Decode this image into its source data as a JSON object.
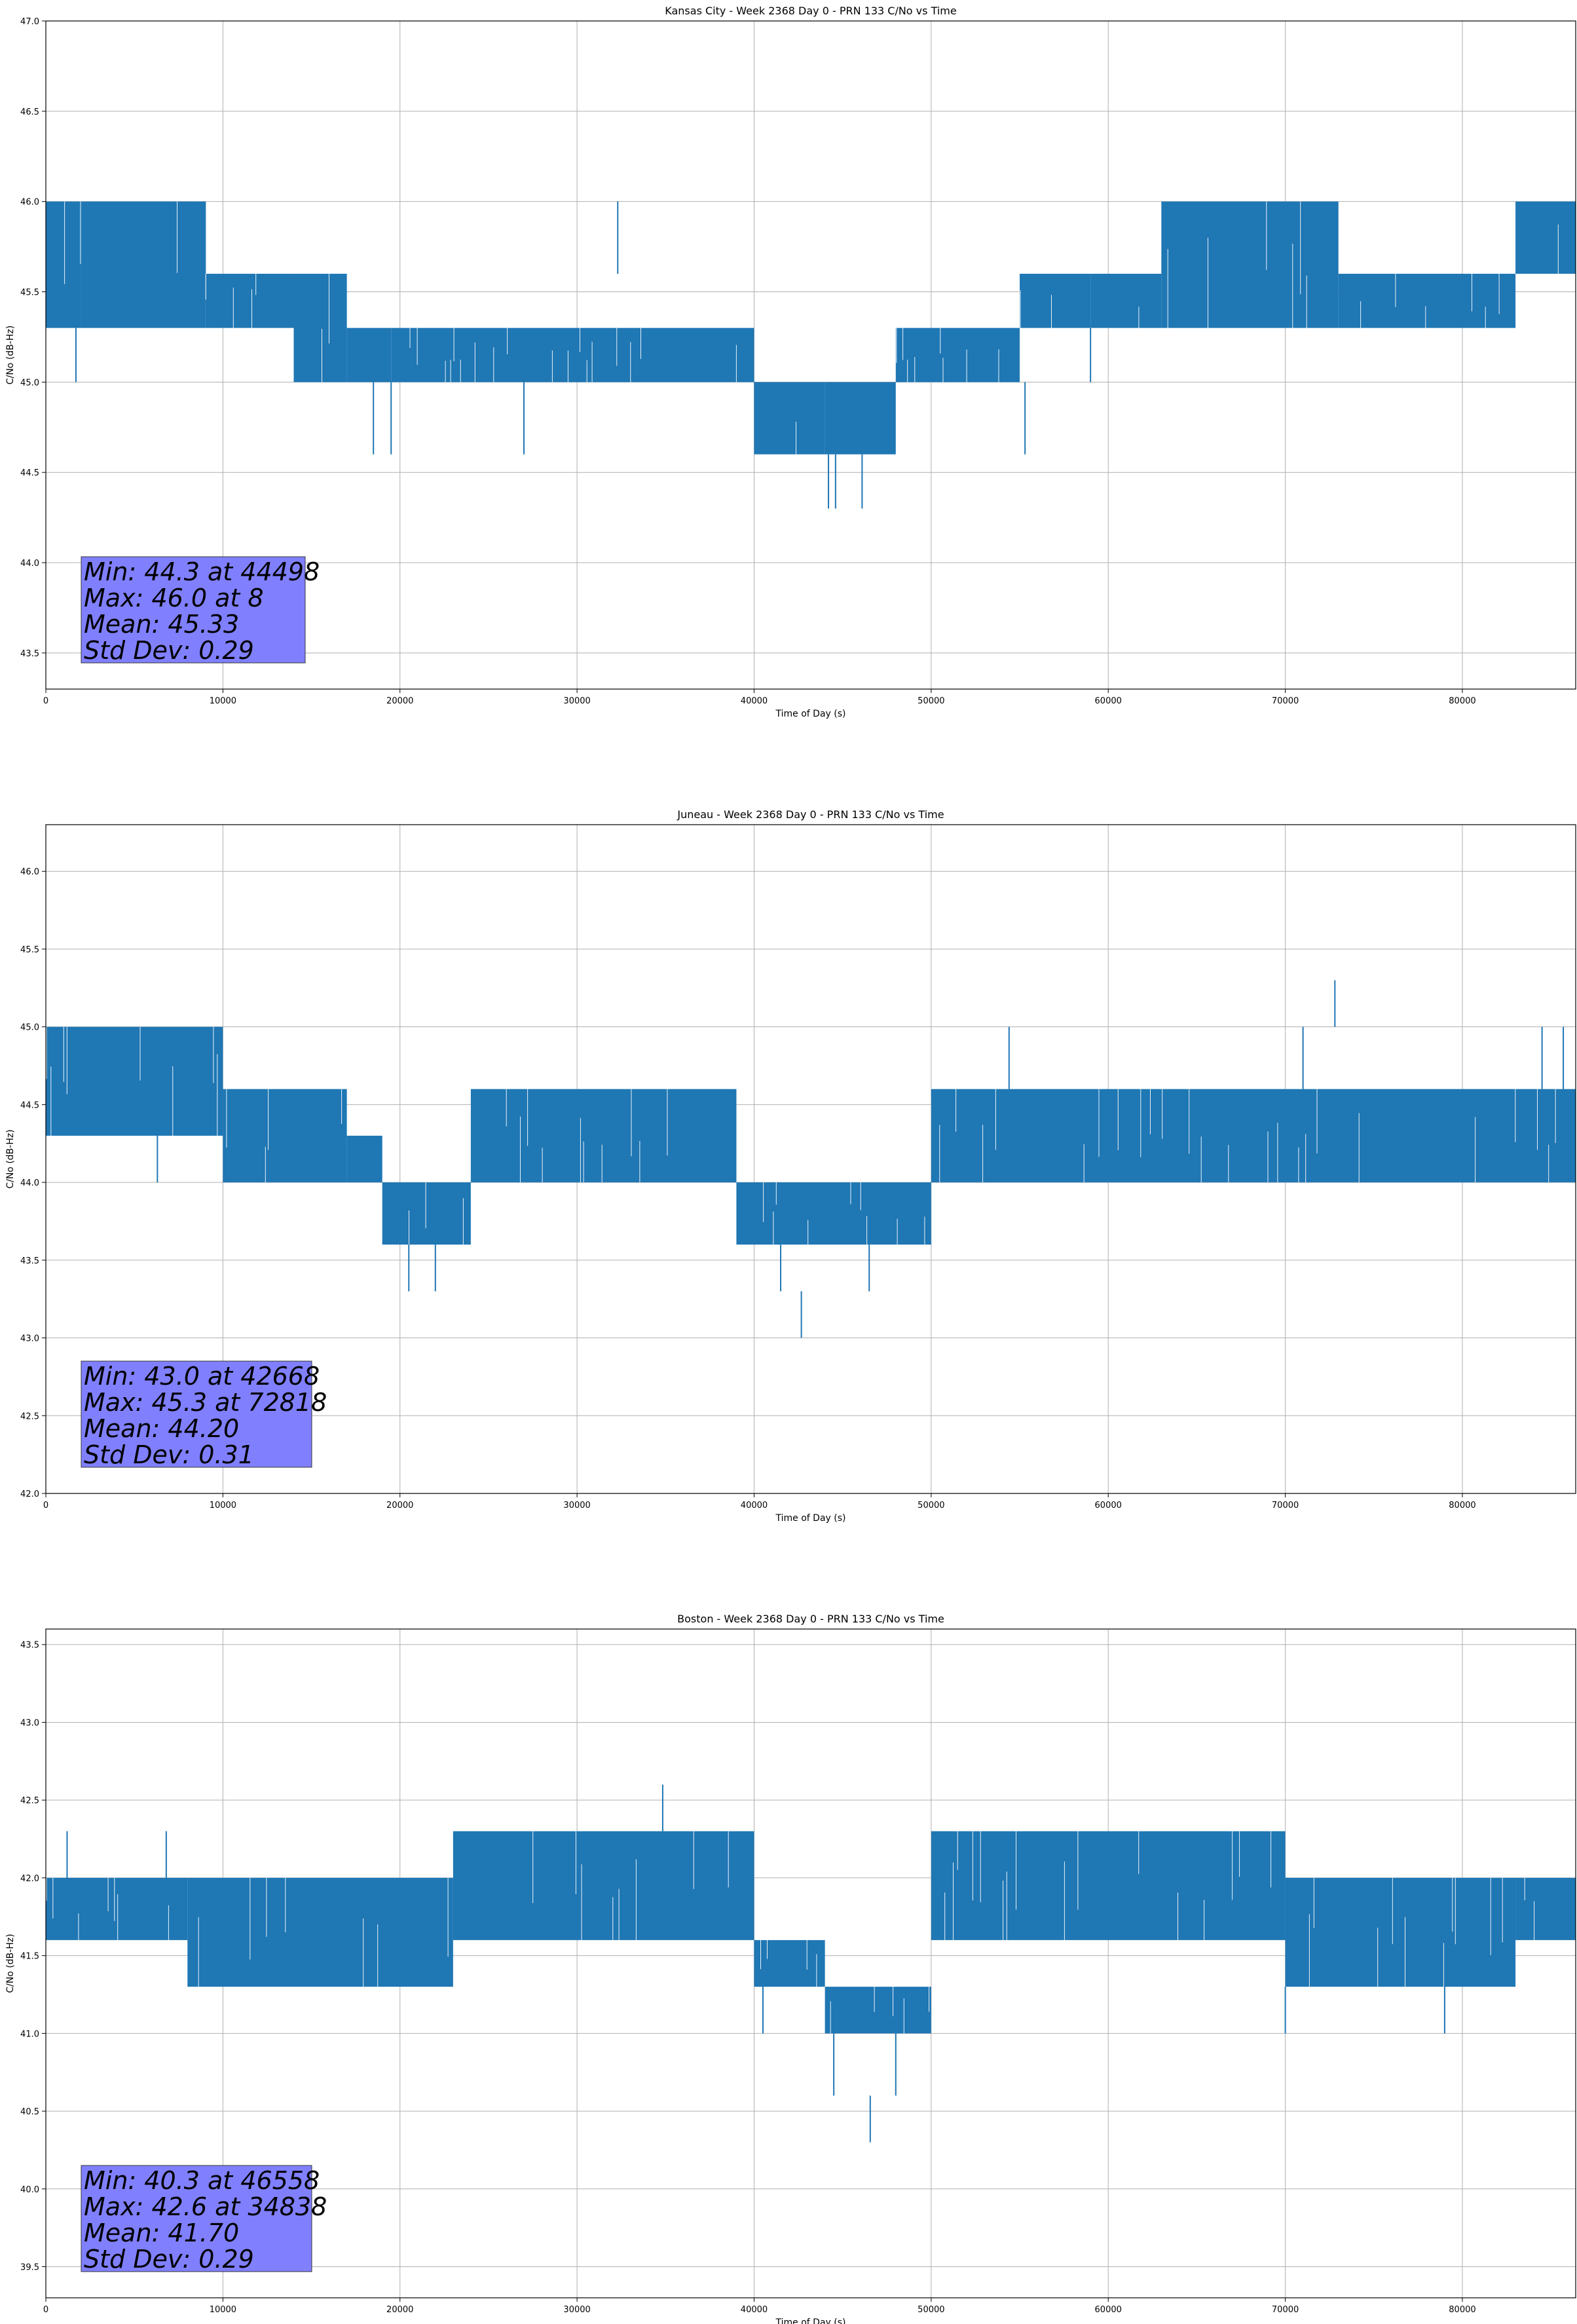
{
  "chart_data": [
    {
      "type": "line",
      "title": "Kansas City - Week 2368 Day 0 - PRN 133 C/No vs Time",
      "xlabel": "Time of Day (s)",
      "ylabel": "C/No (dB-Hz)",
      "xlim": [
        0,
        86400
      ],
      "ylim": [
        43.3,
        47.0
      ],
      "xticks": [
        0,
        10000,
        20000,
        30000,
        40000,
        50000,
        60000,
        70000,
        80000
      ],
      "yticks": [
        43.5,
        44.0,
        44.5,
        45.0,
        45.5,
        46.0,
        46.5,
        47.0
      ],
      "grid": true,
      "series_color": "#1f77b4",
      "series": [
        {
          "name": "C/No",
          "segments": [
            {
              "x0": 0,
              "x1": 2000,
              "low": 45.3,
              "high": 46.0
            },
            {
              "x0": 2000,
              "x1": 9000,
              "low": 45.3,
              "high": 46.0
            },
            {
              "x0": 9000,
              "x1": 14000,
              "low": 45.3,
              "high": 45.6
            },
            {
              "x0": 14000,
              "x1": 17000,
              "low": 45.0,
              "high": 45.6
            },
            {
              "x0": 17000,
              "x1": 19500,
              "low": 45.0,
              "high": 45.3
            },
            {
              "x0": 19500,
              "x1": 40000,
              "low": 45.0,
              "high": 45.3
            },
            {
              "x0": 40000,
              "x1": 44000,
              "low": 44.6,
              "high": 45.0
            },
            {
              "x0": 44000,
              "x1": 48000,
              "low": 44.6,
              "high": 45.0
            },
            {
              "x0": 48000,
              "x1": 55000,
              "low": 45.0,
              "high": 45.3
            },
            {
              "x0": 55000,
              "x1": 59000,
              "low": 45.3,
              "high": 45.6
            },
            {
              "x0": 59000,
              "x1": 63000,
              "low": 45.3,
              "high": 45.6
            },
            {
              "x0": 63000,
              "x1": 73000,
              "low": 45.3,
              "high": 46.0
            },
            {
              "x0": 73000,
              "x1": 83000,
              "low": 45.3,
              "high": 45.6
            },
            {
              "x0": 83000,
              "x1": 86400,
              "low": 45.6,
              "high": 46.0
            }
          ],
          "spikes": [
            {
              "x": 1700,
              "low": 45.0,
              "high": 45.3
            },
            {
              "x": 8000,
              "low": 45.6,
              "high": 46.0
            },
            {
              "x": 9000,
              "low": 45.6,
              "high": 46.0
            },
            {
              "x": 18500,
              "low": 44.6,
              "high": 45.0
            },
            {
              "x": 19500,
              "low": 44.6,
              "high": 45.0
            },
            {
              "x": 27000,
              "low": 44.6,
              "high": 45.0
            },
            {
              "x": 32300,
              "low": 45.6,
              "high": 46.0
            },
            {
              "x": 44200,
              "low": 44.3,
              "high": 44.6
            },
            {
              "x": 44600,
              "low": 44.3,
              "high": 44.6
            },
            {
              "x": 46100,
              "low": 44.3,
              "high": 44.6
            },
            {
              "x": 55300,
              "low": 44.6,
              "high": 45.0
            },
            {
              "x": 59000,
              "low": 45.0,
              "high": 45.3
            }
          ]
        }
      ],
      "stats_box": {
        "lines": [
          "Min: 44.3 at 44498",
          "Max: 46.0 at 8",
          "Mean: 45.33",
          "Std Dev: 0.29"
        ]
      }
    },
    {
      "type": "line",
      "title": "Juneau - Week 2368 Day 0 - PRN 133 C/No vs Time",
      "xlabel": "Time of Day (s)",
      "ylabel": "C/No (dB-Hz)",
      "xlim": [
        0,
        86400
      ],
      "ylim": [
        42.0,
        46.3
      ],
      "xticks": [
        0,
        10000,
        20000,
        30000,
        40000,
        50000,
        60000,
        70000,
        80000
      ],
      "yticks": [
        42.0,
        42.5,
        43.0,
        43.5,
        44.0,
        44.5,
        45.0,
        45.5,
        46.0
      ],
      "grid": true,
      "series_color": "#1f77b4",
      "series": [
        {
          "name": "C/No",
          "segments": [
            {
              "x0": 0,
              "x1": 10000,
              "low": 44.3,
              "high": 45.0
            },
            {
              "x0": 10000,
              "x1": 17000,
              "low": 44.0,
              "high": 44.6
            },
            {
              "x0": 17000,
              "x1": 19000,
              "low": 44.0,
              "high": 44.3
            },
            {
              "x0": 19000,
              "x1": 24000,
              "low": 43.6,
              "high": 44.0
            },
            {
              "x0": 24000,
              "x1": 39000,
              "low": 44.0,
              "high": 44.6
            },
            {
              "x0": 39000,
              "x1": 50000,
              "low": 43.6,
              "high": 44.0
            },
            {
              "x0": 50000,
              "x1": 86400,
              "low": 44.0,
              "high": 44.6
            }
          ],
          "spikes": [
            {
              "x": 6300,
              "low": 44.0,
              "high": 44.3
            },
            {
              "x": 20500,
              "low": 43.3,
              "high": 43.6
            },
            {
              "x": 22000,
              "low": 43.3,
              "high": 43.6
            },
            {
              "x": 41500,
              "low": 43.3,
              "high": 43.6
            },
            {
              "x": 42668,
              "low": 43.0,
              "high": 43.3
            },
            {
              "x": 46500,
              "low": 43.3,
              "high": 43.6
            },
            {
              "x": 54400,
              "low": 44.6,
              "high": 45.0
            },
            {
              "x": 71000,
              "low": 44.6,
              "high": 45.0
            },
            {
              "x": 72800,
              "low": 45.0,
              "high": 45.3
            },
            {
              "x": 84500,
              "low": 44.6,
              "high": 45.0
            },
            {
              "x": 85700,
              "low": 44.6,
              "high": 45.0
            }
          ]
        }
      ],
      "stats_box": {
        "lines": [
          "Min: 43.0 at 42668",
          "Max: 45.3 at 72818",
          "Mean: 44.20",
          "Std Dev: 0.31"
        ]
      }
    },
    {
      "type": "line",
      "title": "Boston - Week 2368 Day 0 - PRN 133 C/No vs Time",
      "xlabel": "Time of Day (s)",
      "ylabel": "C/No (dB-Hz)",
      "xlim": [
        0,
        86400
      ],
      "ylim": [
        39.3,
        43.6
      ],
      "xticks": [
        0,
        10000,
        20000,
        30000,
        40000,
        50000,
        60000,
        70000,
        80000
      ],
      "yticks": [
        39.5,
        40.0,
        40.5,
        41.0,
        41.5,
        42.0,
        42.5,
        43.0,
        43.5
      ],
      "grid": true,
      "series_color": "#1f77b4",
      "series": [
        {
          "name": "C/No",
          "segments": [
            {
              "x0": 0,
              "x1": 8000,
              "low": 41.6,
              "high": 42.0
            },
            {
              "x0": 8000,
              "x1": 23000,
              "low": 41.3,
              "high": 42.0
            },
            {
              "x0": 23000,
              "x1": 40000,
              "low": 41.6,
              "high": 42.3
            },
            {
              "x0": 40000,
              "x1": 44000,
              "low": 41.3,
              "high": 41.6
            },
            {
              "x0": 44000,
              "x1": 50000,
              "low": 41.0,
              "high": 41.3
            },
            {
              "x0": 50000,
              "x1": 70000,
              "low": 41.6,
              "high": 42.3
            },
            {
              "x0": 70000,
              "x1": 83000,
              "low": 41.3,
              "high": 42.0
            },
            {
              "x0": 83000,
              "x1": 86400,
              "low": 41.6,
              "high": 42.0
            }
          ],
          "spikes": [
            {
              "x": 1200,
              "low": 42.0,
              "high": 42.3
            },
            {
              "x": 6800,
              "low": 42.0,
              "high": 42.3
            },
            {
              "x": 34838,
              "low": 42.3,
              "high": 42.6
            },
            {
              "x": 40500,
              "low": 41.0,
              "high": 41.3
            },
            {
              "x": 44500,
              "low": 40.6,
              "high": 41.0
            },
            {
              "x": 46558,
              "low": 40.3,
              "high": 40.6
            },
            {
              "x": 48000,
              "low": 40.6,
              "high": 41.0
            },
            {
              "x": 70000,
              "low": 41.0,
              "high": 41.3
            },
            {
              "x": 79000,
              "low": 41.0,
              "high": 41.3
            }
          ]
        }
      ],
      "stats_box": {
        "lines": [
          "Min: 40.3 at 46558",
          "Max: 42.6 at 34838",
          "Mean: 41.70",
          "Std Dev: 0.29"
        ]
      }
    }
  ]
}
